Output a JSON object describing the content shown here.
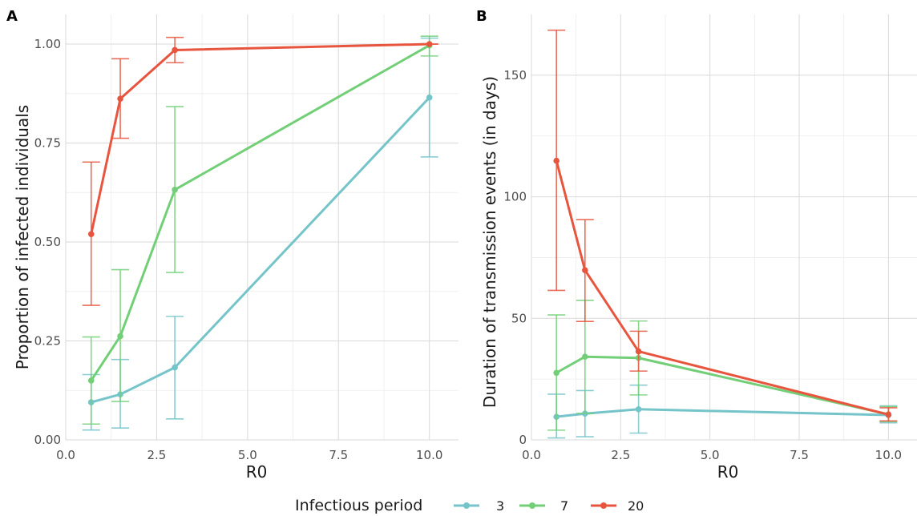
{
  "colors": {
    "3": "#74c4c9",
    "7": "#72cf77",
    "20": "#e8553e"
  },
  "legend": {
    "title": "Infectious period",
    "entries": [
      {
        "label": "3",
        "color": "#74c4c9"
      },
      {
        "label": "7",
        "color": "#72cf77"
      },
      {
        "label": "20",
        "color": "#e8553e"
      }
    ]
  },
  "chart_data": [
    {
      "panel": "A",
      "type": "line",
      "title": "",
      "xlabel": "R0",
      "ylabel": "Proportion of infected individuals",
      "xlim": [
        0,
        10.8
      ],
      "ylim": [
        0,
        1.075
      ],
      "xticks": [
        0,
        2.5,
        5,
        7.5,
        10
      ],
      "xtick_labels": [
        "0.0",
        "2.5",
        "5.0",
        "7.5",
        "10.0"
      ],
      "yticks": [
        0,
        0.25,
        0.5,
        0.75,
        1.0
      ],
      "ytick_labels": [
        "0.00",
        "0.25",
        "0.50",
        "0.75",
        "1.00"
      ],
      "grid": true,
      "series": [
        {
          "name": "3",
          "x": [
            0.7,
            1.5,
            3,
            10
          ],
          "y": [
            0.095,
            0.115,
            0.183,
            0.865
          ],
          "ymin": [
            0.025,
            0.03,
            0.053,
            0.715
          ],
          "ymax": [
            0.165,
            0.203,
            0.312,
            1.015
          ]
        },
        {
          "name": "7",
          "x": [
            0.7,
            1.5,
            3,
            10
          ],
          "y": [
            0.15,
            0.262,
            0.632,
            0.997
          ],
          "ymin": [
            0.04,
            0.097,
            0.423,
            0.97
          ],
          "ymax": [
            0.26,
            0.43,
            0.842,
            1.02
          ]
        },
        {
          "name": "20",
          "x": [
            0.7,
            1.5,
            3,
            10
          ],
          "y": [
            0.52,
            0.862,
            0.985,
            1.0
          ],
          "ymin": [
            0.34,
            0.762,
            0.953,
            1.0
          ],
          "ymax": [
            0.702,
            0.963,
            1.017,
            1.0
          ]
        }
      ]
    },
    {
      "panel": "B",
      "type": "line",
      "title": "",
      "xlabel": "R0",
      "ylabel": "Duration of transmission events (in days)",
      "xlim": [
        0,
        10.8
      ],
      "ylim": [
        0,
        175
      ],
      "xticks": [
        0,
        2.5,
        5,
        7.5,
        10
      ],
      "xtick_labels": [
        "0.0",
        "2.5",
        "5.0",
        "7.5",
        "10.0"
      ],
      "yticks": [
        0,
        50,
        100,
        150
      ],
      "ytick_labels": [
        "0",
        "50",
        "100",
        "150"
      ],
      "grid": true,
      "series": [
        {
          "name": "3",
          "x": [
            0.7,
            1.5,
            3,
            10
          ],
          "y": [
            9.5,
            10.8,
            12.6,
            10.2
          ],
          "ymin": [
            0.8,
            1.3,
            2.8,
            7.0
          ],
          "ymax": [
            18.8,
            20.3,
            22.5,
            14.0
          ]
        },
        {
          "name": "7",
          "x": [
            0.7,
            1.5,
            3,
            10
          ],
          "y": [
            27.6,
            34.2,
            33.7,
            10.5
          ],
          "ymin": [
            4.0,
            10.9,
            18.5,
            7.5
          ],
          "ymax": [
            51.4,
            57.4,
            48.9,
            13.7
          ]
        },
        {
          "name": "20",
          "x": [
            0.7,
            1.5,
            3,
            10
          ],
          "y": [
            114.8,
            69.8,
            36.4,
            10.4
          ],
          "ymin": [
            61.5,
            48.7,
            28.3,
            7.8
          ],
          "ymax": [
            168.5,
            90.6,
            44.7,
            13.2
          ]
        }
      ]
    }
  ]
}
